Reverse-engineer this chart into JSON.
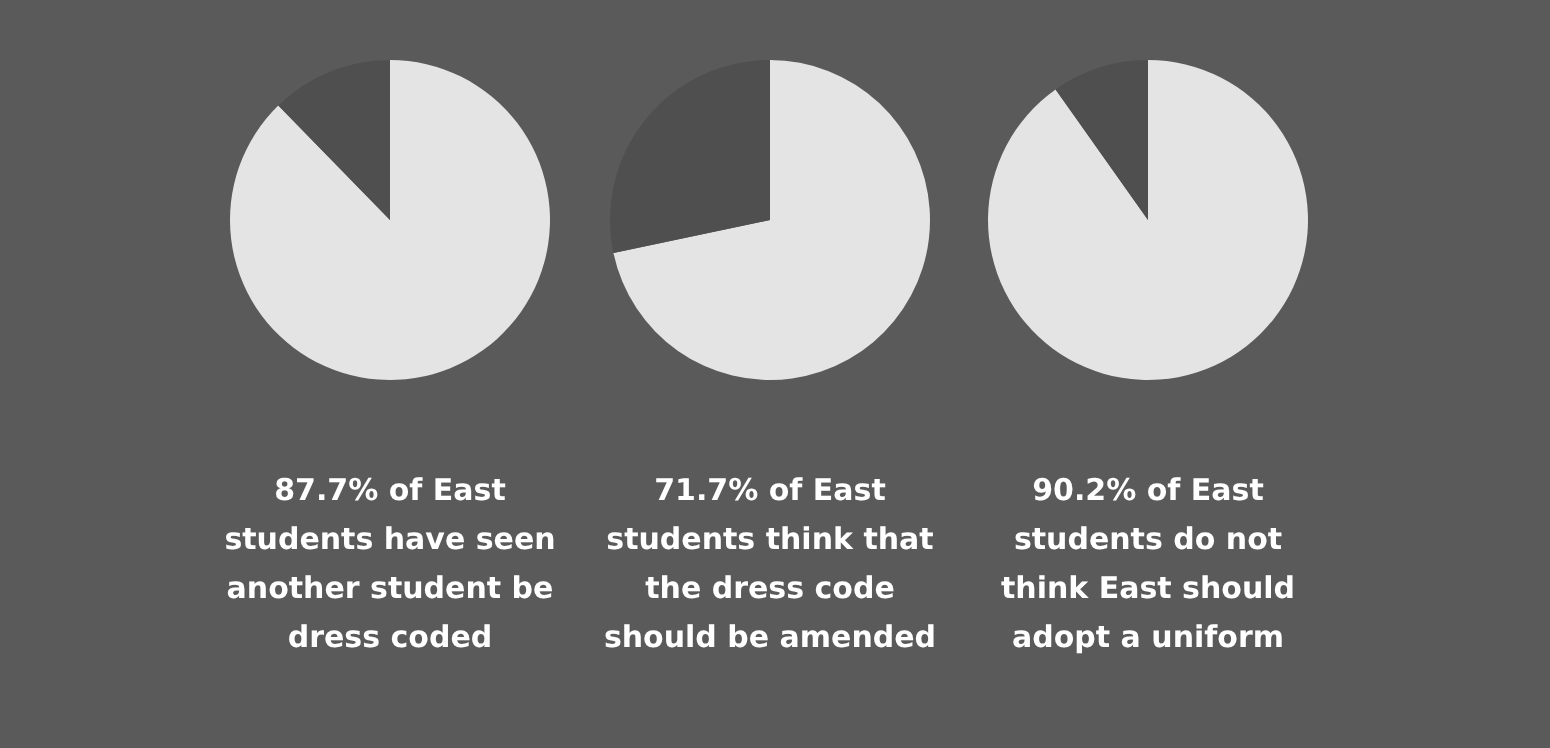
{
  "chart_data": [
    {
      "type": "pie",
      "title": "87.7% of East\nstudents have seen\nanother student be\ndress coded",
      "categories": [
        null,
        null
      ],
      "values": [
        87.7,
        12.3
      ],
      "colors": [
        "#e4e4e4",
        "#4f4f4f"
      ]
    },
    {
      "type": "pie",
      "title": "71.7% of East\nstudents think that\nthe dress code\nshould be amended",
      "categories": [
        null,
        null
      ],
      "values": [
        71.7,
        28.3
      ],
      "colors": [
        "#e4e4e4",
        "#4f4f4f"
      ]
    },
    {
      "type": "pie",
      "title": "90.2% of East\nstudents do not\nthink East should\nadopt a uniform",
      "categories": [
        null,
        null
      ],
      "values": [
        90.2,
        9.8
      ],
      "colors": [
        "#e4e4e4",
        "#4f4f4f"
      ]
    }
  ]
}
